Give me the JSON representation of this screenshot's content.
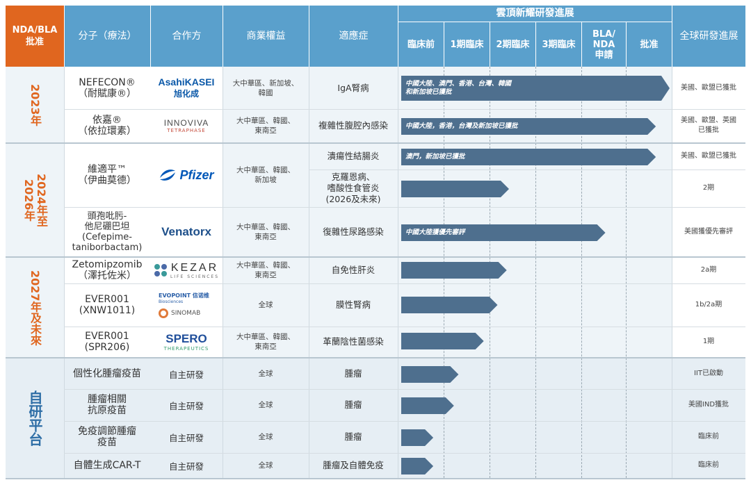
{
  "header": {
    "nda": "NDA/BLA\n批准",
    "molecule": "分子（療法）",
    "partner": "合作方",
    "rights": "商業權益",
    "indication": "適應症",
    "progress_title": "雲頂新耀研發進展",
    "phases": [
      "臨床前",
      "1期臨床",
      "2期臨床",
      "3期臨床",
      "BLA/\nNDA\n申請",
      "批准"
    ],
    "global": "全球研發進展"
  },
  "year_labels": {
    "y2023": "2023年",
    "y2024": "2024年至\n2026年",
    "y2027": "2027年及未來",
    "platform": "自研平台"
  },
  "rows": [
    {
      "molecule": "NEFECON®\n（耐賦康®）",
      "partner": "Asahi KASEI 旭化成",
      "rights": "大中華區、新加坡、\n韓國",
      "indication": "IgA腎病",
      "arrow_text": "中國大陸、澳門、香港、台灣、韓國\n和新加坡已獲批",
      "global": "美國、歐盟已獲批",
      "stage": 6.0
    },
    {
      "molecule": "依嘉®\n（依拉環素）",
      "partner": "INNOVIVA TETRAPHASE",
      "rights": "大中華區、韓國、\n東南亞",
      "indication": "複雜性腹腔內感染",
      "arrow_text": "中國大陸，香港，台灣及新加坡已獲批",
      "global": "美國、歐盟、英國\n已獲批",
      "stage": 5.7
    },
    {
      "molecule": "維適平™\n（伊曲莫德）",
      "partner": "Pfizer",
      "rights": "大中華區、韓國、\n新加坡",
      "indication": "潰瘍性結腸炎",
      "arrow_text": "澳門，新加坡已獲批",
      "global": "美國、歐盟已獲批",
      "stage": 5.7
    },
    {
      "indication": "克羅恩病、\n嗜酸性食管炎\n(2026及未來)",
      "global": "2期",
      "stage": 2.5
    },
    {
      "molecule": "頭孢吡肟-\n他尼硼巴坦\n(Cefepime-\ntaniborbactam)",
      "partner": "Venatorx",
      "rights": "大中華區、韓國、\n東南亞",
      "indication": "復雜性尿路感染",
      "arrow_text": "中國大陸獲優先審評",
      "global": "美國獲優先審評",
      "stage": 4.6
    },
    {
      "molecule": "Zetomipzomib\n（澤托佐米）",
      "partner": "KEZAR LIFE SCIENCES",
      "rights": "大中華區、韓國、\n東南亞",
      "indication": "自免性肝炎",
      "global": "2a期",
      "stage": 2.45
    },
    {
      "molecule": "EVER001\n(XNW1011)",
      "partner": "EVOPOINT 信諾維 / SINOMAB",
      "rights": "全球",
      "indication": "膜性腎病",
      "global": "1b/2a期",
      "stage": 2.25
    },
    {
      "molecule": "EVER001\n(SPR206)",
      "partner": "SPERO THERAPEUTICS",
      "rights": "大中華區、韓國、\n東南亞",
      "indication": "革蘭陰性菌感染",
      "global": "1期",
      "stage": 1.95
    },
    {
      "molecule": "個性化腫瘤疫苗",
      "partner": "自主研發",
      "rights": "全球",
      "indication": "腫瘤",
      "global": "IIT已啟動",
      "stage": 1.4
    },
    {
      "molecule": "腫瘤相關\n抗原疫苗",
      "partner": "自主研發",
      "rights": "全球",
      "indication": "腫瘤",
      "global": "美國IND獲批",
      "stage": 1.3
    },
    {
      "molecule": "免疫調節腫瘤\n疫苗",
      "partner": "自主研發",
      "rights": "全球",
      "indication": "腫瘤",
      "global": "臨床前",
      "stage": 0.85
    },
    {
      "molecule": "自體生成CAR-T",
      "partner": "自主研發",
      "rights": "全球",
      "indication": "腫瘤及自體免疫",
      "global": "臨床前",
      "stage": 0.85
    }
  ],
  "logos": {
    "asahi_top": "AsahiKASEI",
    "asahi_bottom": "旭化成",
    "innoviva": "INNOVIVA",
    "tetraphase": "TETRAPHASE",
    "pfizer": "Pfizer",
    "venatorx": "Venatorx",
    "kezar": "KEZAR",
    "kezar_sub": "LIFE SCIENCES",
    "evopoint": "EVOPOINT 信诺维",
    "evopoint_sub": "Biosciences",
    "sinomab": "SINOMAB",
    "spero": "SPERO",
    "spero_sub": "THERAPEUTICS"
  },
  "colors": {
    "header_blue": "#5aa0cc",
    "header_orange": "#e0661f",
    "arrow": "#4e6f8e",
    "row_tint": "#e8f0f6",
    "partner_bg": "#ffffff",
    "year_orange": "#e0661f",
    "year_blue": "#2e6ea6"
  }
}
